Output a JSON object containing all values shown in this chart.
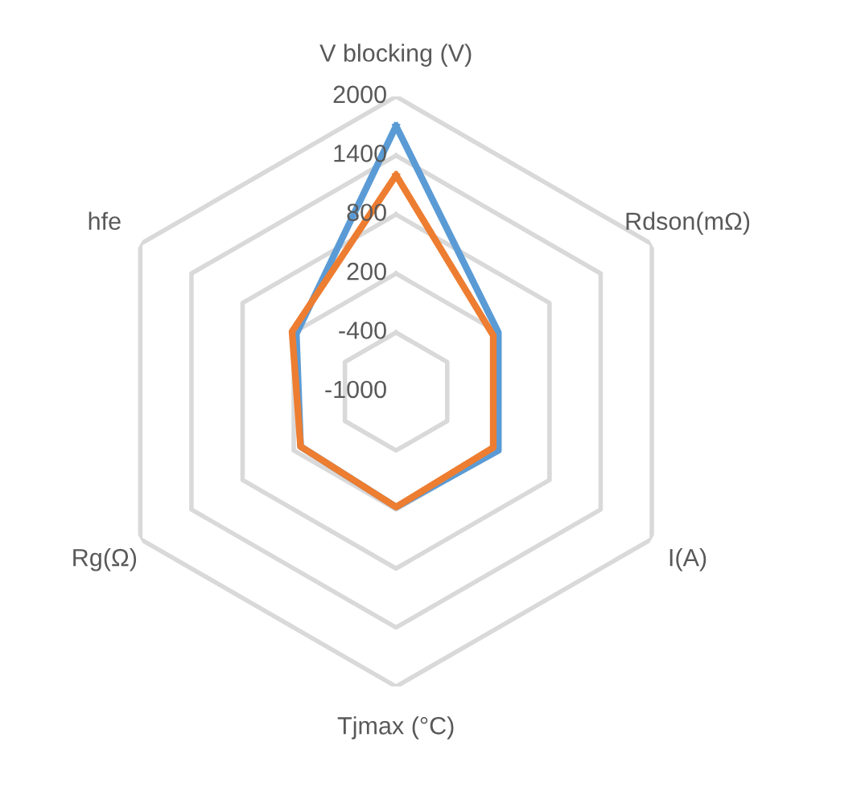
{
  "chart_data": {
    "type": "radar",
    "categories": [
      "V blocking (V)",
      "Rdson(mΩ)",
      "I(A)",
      "Tjmax (°C)",
      "Rg(Ω)",
      "hfe"
    ],
    "series": [
      {
        "color": "#5b9bd5",
        "values": [
          1700,
          200,
          200,
          175,
          120,
          170
        ]
      },
      {
        "color": "#ed7d31",
        "values": [
          1200,
          140,
          140,
          175,
          120,
          220
        ]
      }
    ],
    "ylim": [
      -1000,
      2000
    ],
    "yticks": [
      -1000,
      -400,
      200,
      800,
      1400,
      2000
    ],
    "grid": true
  }
}
